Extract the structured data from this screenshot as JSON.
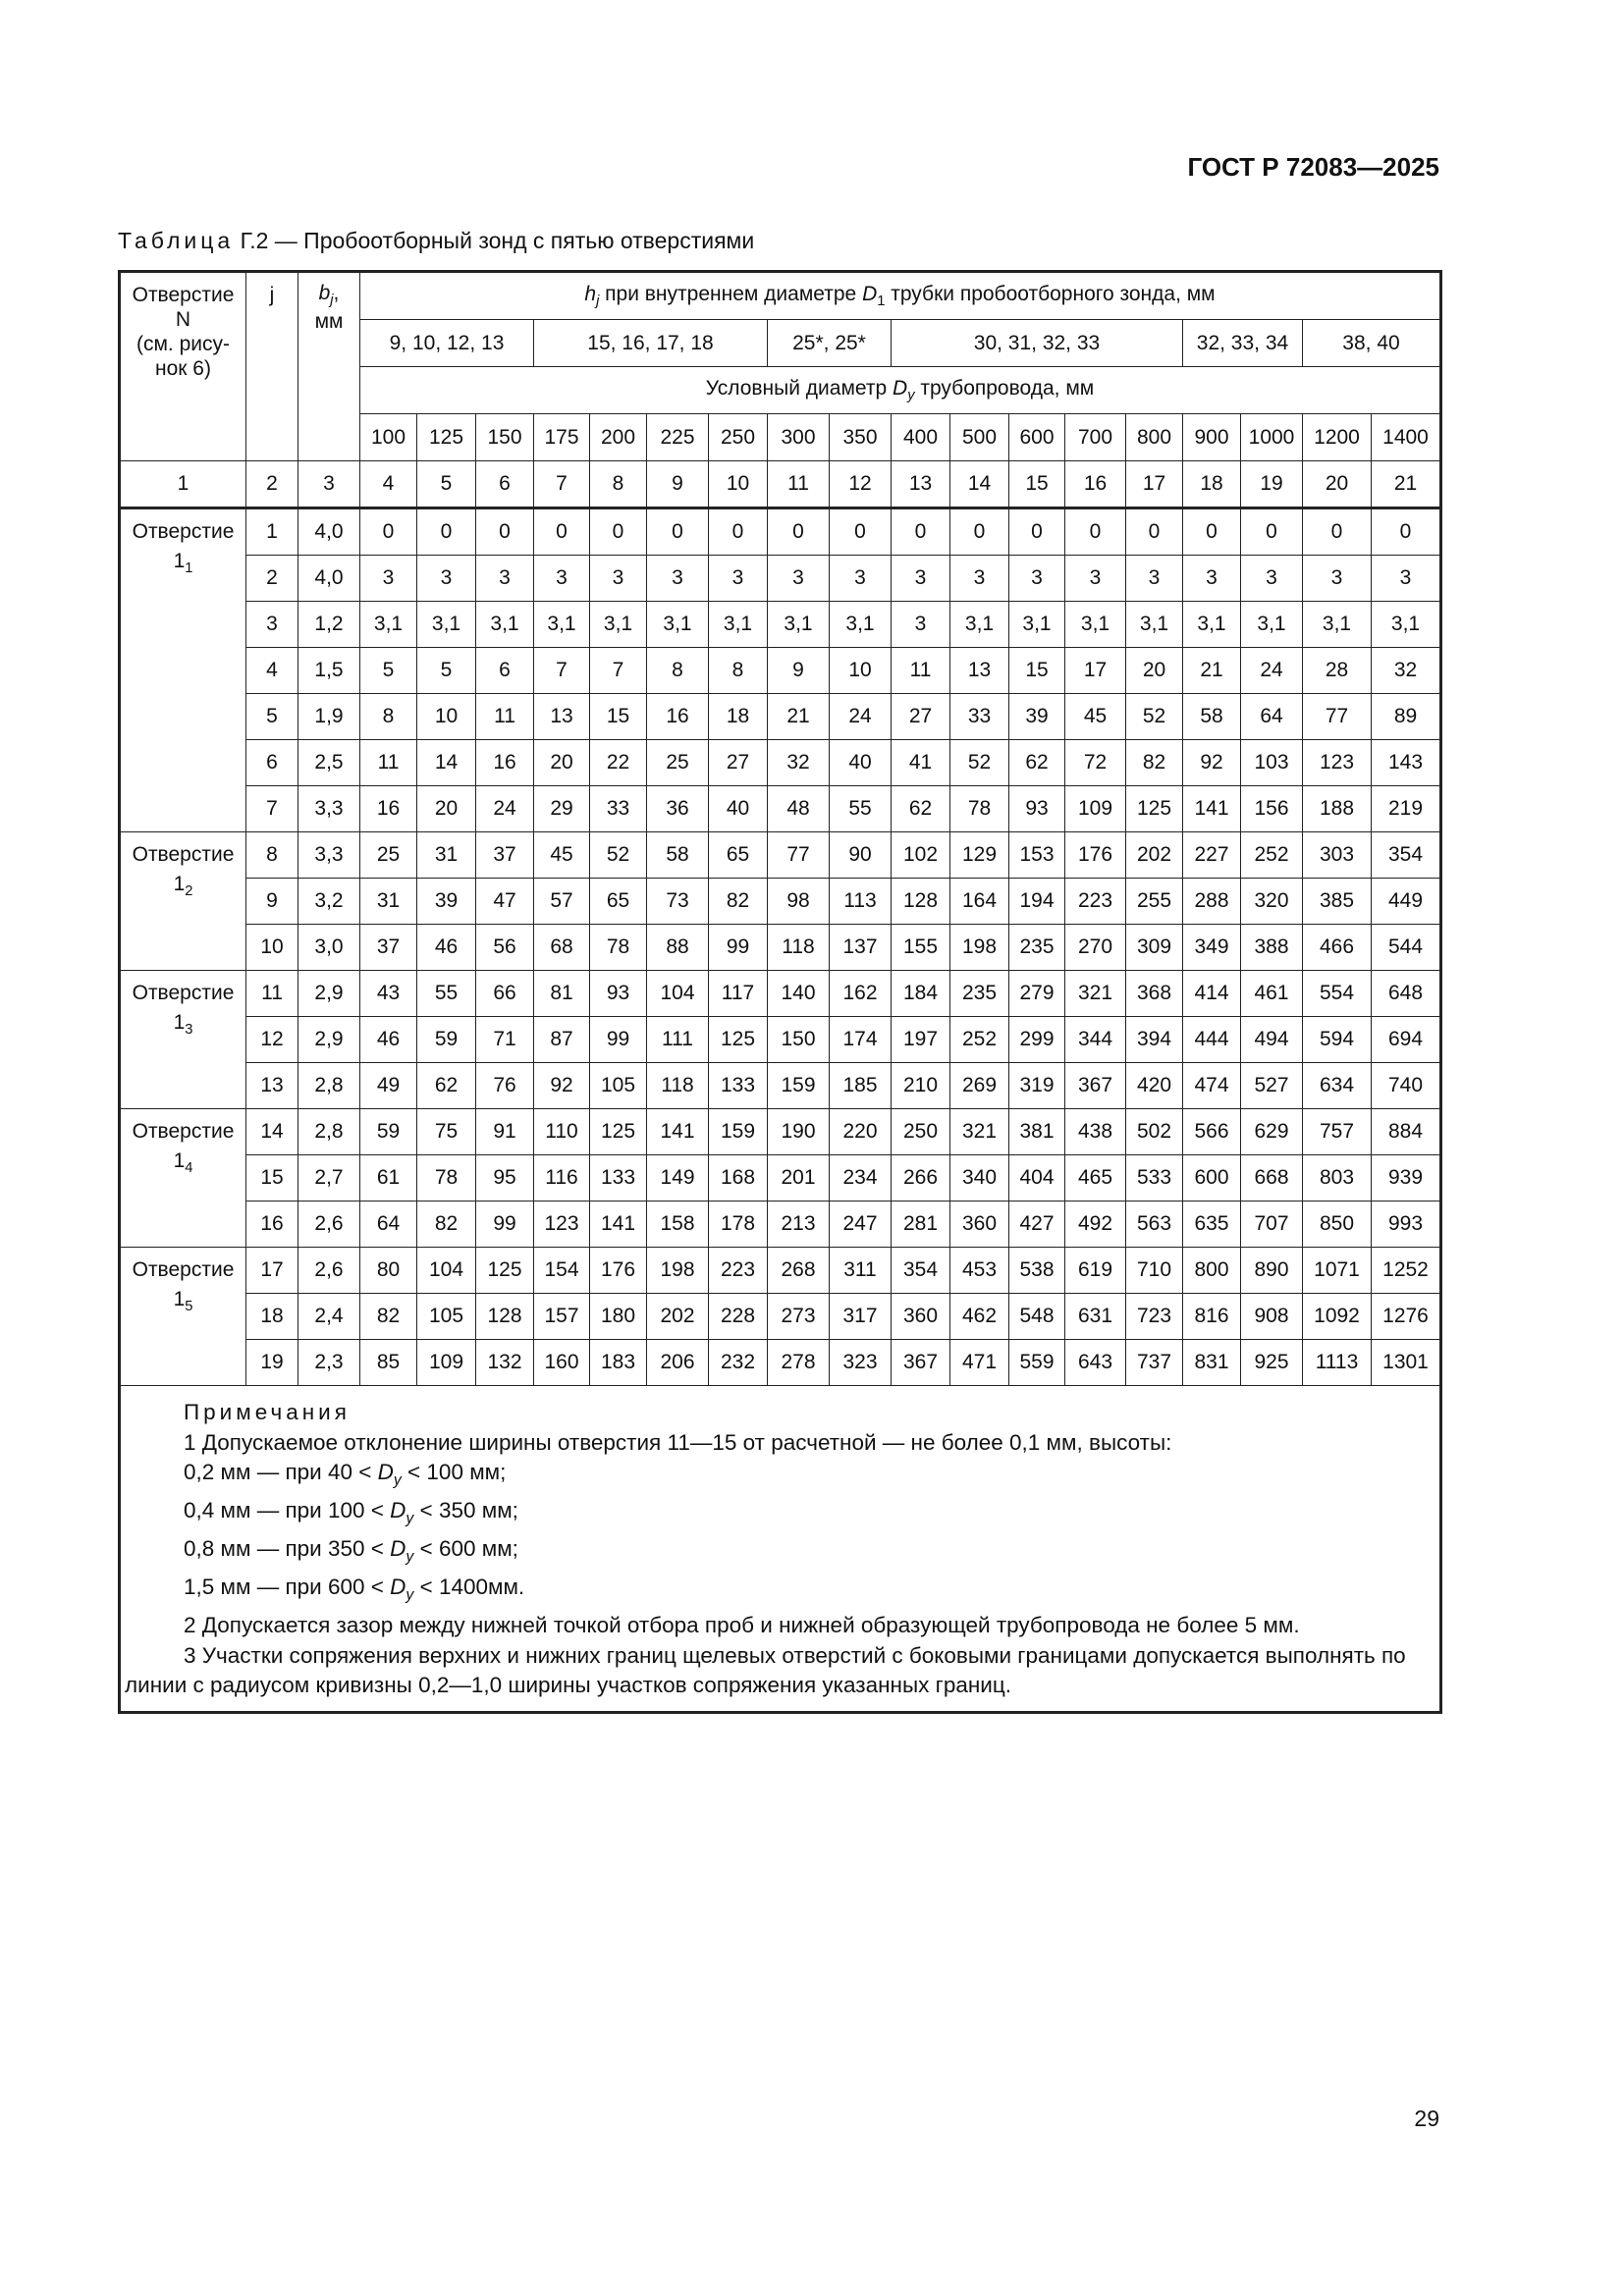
{
  "header": {
    "doc_id": "ГОСТ Р 72083—2025"
  },
  "caption": {
    "label": "Таблица",
    "text": " Г.2 — Пробоотборный зонд с пятью отверстиями"
  },
  "table": {
    "col_n_header_lines": [
      "Отверстие",
      "N",
      "(см. рису-",
      "нок 6)"
    ],
    "col_j_header": "j",
    "col_b_header": {
      "sym": "b",
      "sub": "j",
      "tail": ",",
      "unit": "мм"
    },
    "h_header": {
      "sym": "h",
      "sub": "j",
      "text": " при внутреннем диаметре ",
      "sym2": "D",
      "sub2": "1",
      "text2": " трубки пробоотборного зонда, мм"
    },
    "d1_groups": [
      {
        "label": "9, 10, 12, 13",
        "span": 3
      },
      {
        "label": "15, 16, 17, 18",
        "span": 4
      },
      {
        "label": "25*, 25*",
        "span": 2
      },
      {
        "label": "30, 31, 32, 33",
        "span": 5
      },
      {
        "label": "32, 33, 34",
        "span": 2
      },
      {
        "label": "38, 40",
        "span": 2
      }
    ],
    "dy_header": {
      "text": "Условный диаметр ",
      "sym": "D",
      "sub": "y",
      "text2": " трубопровода, мм"
    },
    "dy_values": [
      "100",
      "125",
      "150",
      "175",
      "200",
      "225",
      "250",
      "300",
      "350",
      "400",
      "500",
      "600",
      "700",
      "800",
      "900",
      "1000",
      "1200",
      "1400"
    ],
    "column_numbers": [
      "1",
      "2",
      "3",
      "4",
      "5",
      "6",
      "7",
      "8",
      "9",
      "10",
      "11",
      "12",
      "13",
      "14",
      "15",
      "16",
      "17",
      "18",
      "19",
      "20",
      "21"
    ],
    "groups": [
      {
        "label": "Отверстие",
        "sub_main": "1",
        "sub": "1",
        "rows": [
          {
            "j": "1",
            "b": "4,0",
            "h": [
              "0",
              "0",
              "0",
              "0",
              "0",
              "0",
              "0",
              "0",
              "0",
              "0",
              "0",
              "0",
              "0",
              "0",
              "0",
              "0",
              "0",
              "0"
            ]
          },
          {
            "j": "2",
            "b": "4,0",
            "h": [
              "3",
              "3",
              "3",
              "3",
              "3",
              "3",
              "3",
              "3",
              "3",
              "3",
              "3",
              "3",
              "3",
              "3",
              "3",
              "3",
              "3",
              "3"
            ]
          },
          {
            "j": "3",
            "b": "1,2",
            "h": [
              "3,1",
              "3,1",
              "3,1",
              "3,1",
              "3,1",
              "3,1",
              "3,1",
              "3,1",
              "3,1",
              "3",
              "3,1",
              "3,1",
              "3,1",
              "3,1",
              "3,1",
              "3,1",
              "3,1",
              "3,1"
            ]
          },
          {
            "j": "4",
            "b": "1,5",
            "h": [
              "5",
              "5",
              "6",
              "7",
              "7",
              "8",
              "8",
              "9",
              "10",
              "11",
              "13",
              "15",
              "17",
              "20",
              "21",
              "24",
              "28",
              "32"
            ]
          },
          {
            "j": "5",
            "b": "1,9",
            "h": [
              "8",
              "10",
              "11",
              "13",
              "15",
              "16",
              "18",
              "21",
              "24",
              "27",
              "33",
              "39",
              "45",
              "52",
              "58",
              "64",
              "77",
              "89"
            ]
          },
          {
            "j": "6",
            "b": "2,5",
            "h": [
              "11",
              "14",
              "16",
              "20",
              "22",
              "25",
              "27",
              "32",
              "40",
              "41",
              "52",
              "62",
              "72",
              "82",
              "92",
              "103",
              "123",
              "143"
            ]
          },
          {
            "j": "7",
            "b": "3,3",
            "h": [
              "16",
              "20",
              "24",
              "29",
              "33",
              "36",
              "40",
              "48",
              "55",
              "62",
              "78",
              "93",
              "109",
              "125",
              "141",
              "156",
              "188",
              "219"
            ]
          }
        ]
      },
      {
        "label": "Отверстие",
        "sub_main": "1",
        "sub": "2",
        "rows": [
          {
            "j": "8",
            "b": "3,3",
            "h": [
              "25",
              "31",
              "37",
              "45",
              "52",
              "58",
              "65",
              "77",
              "90",
              "102",
              "129",
              "153",
              "176",
              "202",
              "227",
              "252",
              "303",
              "354"
            ]
          },
          {
            "j": "9",
            "b": "3,2",
            "h": [
              "31",
              "39",
              "47",
              "57",
              "65",
              "73",
              "82",
              "98",
              "113",
              "128",
              "164",
              "194",
              "223",
              "255",
              "288",
              "320",
              "385",
              "449"
            ]
          },
          {
            "j": "10",
            "b": "3,0",
            "h": [
              "37",
              "46",
              "56",
              "68",
              "78",
              "88",
              "99",
              "118",
              "137",
              "155",
              "198",
              "235",
              "270",
              "309",
              "349",
              "388",
              "466",
              "544"
            ]
          }
        ]
      },
      {
        "label": "Отверстие",
        "sub_main": "1",
        "sub": "3",
        "rows": [
          {
            "j": "11",
            "b": "2,9",
            "h": [
              "43",
              "55",
              "66",
              "81",
              "93",
              "104",
              "117",
              "140",
              "162",
              "184",
              "235",
              "279",
              "321",
              "368",
              "414",
              "461",
              "554",
              "648"
            ]
          },
          {
            "j": "12",
            "b": "2,9",
            "h": [
              "46",
              "59",
              "71",
              "87",
              "99",
              "111",
              "125",
              "150",
              "174",
              "197",
              "252",
              "299",
              "344",
              "394",
              "444",
              "494",
              "594",
              "694"
            ]
          },
          {
            "j": "13",
            "b": "2,8",
            "h": [
              "49",
              "62",
              "76",
              "92",
              "105",
              "118",
              "133",
              "159",
              "185",
              "210",
              "269",
              "319",
              "367",
              "420",
              "474",
              "527",
              "634",
              "740"
            ]
          }
        ]
      },
      {
        "label": "Отверстие",
        "sub_main": "1",
        "sub": "4",
        "rows": [
          {
            "j": "14",
            "b": "2,8",
            "h": [
              "59",
              "75",
              "91",
              "110",
              "125",
              "141",
              "159",
              "190",
              "220",
              "250",
              "321",
              "381",
              "438",
              "502",
              "566",
              "629",
              "757",
              "884"
            ]
          },
          {
            "j": "15",
            "b": "2,7",
            "h": [
              "61",
              "78",
              "95",
              "116",
              "133",
              "149",
              "168",
              "201",
              "234",
              "266",
              "340",
              "404",
              "465",
              "533",
              "600",
              "668",
              "803",
              "939"
            ]
          },
          {
            "j": "16",
            "b": "2,6",
            "h": [
              "64",
              "82",
              "99",
              "123",
              "141",
              "158",
              "178",
              "213",
              "247",
              "281",
              "360",
              "427",
              "492",
              "563",
              "635",
              "707",
              "850",
              "993"
            ]
          }
        ]
      },
      {
        "label": "Отверстие",
        "sub_main": "1",
        "sub": "5",
        "rows": [
          {
            "j": "17",
            "b": "2,6",
            "h": [
              "80",
              "104",
              "125",
              "154",
              "176",
              "198",
              "223",
              "268",
              "311",
              "354",
              "453",
              "538",
              "619",
              "710",
              "800",
              "890",
              "1071",
              "1252"
            ]
          },
          {
            "j": "18",
            "b": "2,4",
            "h": [
              "82",
              "105",
              "128",
              "157",
              "180",
              "202",
              "228",
              "273",
              "317",
              "360",
              "462",
              "548",
              "631",
              "723",
              "816",
              "908",
              "1092",
              "1276"
            ]
          },
          {
            "j": "19",
            "b": "2,3",
            "h": [
              "85",
              "109",
              "132",
              "160",
              "183",
              "206",
              "232",
              "278",
              "323",
              "367",
              "471",
              "559",
              "643",
              "737",
              "831",
              "925",
              "1113",
              "1301"
            ]
          }
        ]
      }
    ],
    "notes": {
      "title": "Примечания",
      "n1": "1 Допускаемое отклонение ширины отверстия 11—15 от расчетной — не более 0,1 мм, высоты:",
      "ranges": [
        {
          "pre": "0,2 мм — при 40 < ",
          "post": " < 100 мм;"
        },
        {
          "pre": "0,4 мм — при 100 < ",
          "post": " < 350 мм;"
        },
        {
          "pre": "0,8 мм — при 350 < ",
          "post": " < 600 мм;"
        },
        {
          "pre": "1,5 мм — при 600 < ",
          "post": " < 1400мм."
        }
      ],
      "dy_sym": "D",
      "dy_sub": "y",
      "n2": "2 Допускается зазор между нижней точкой отбора проб и нижней образующей трубопровода не более 5 мм.",
      "n3": "3 Участки сопряжения верхних и нижних границ щелевых отверстий с боковыми границами допускается выполнять по линии с радиусом кривизны 0,2—1,0 ширины участков сопряжения указанных границ."
    }
  },
  "footer": {
    "page_number": "29"
  }
}
